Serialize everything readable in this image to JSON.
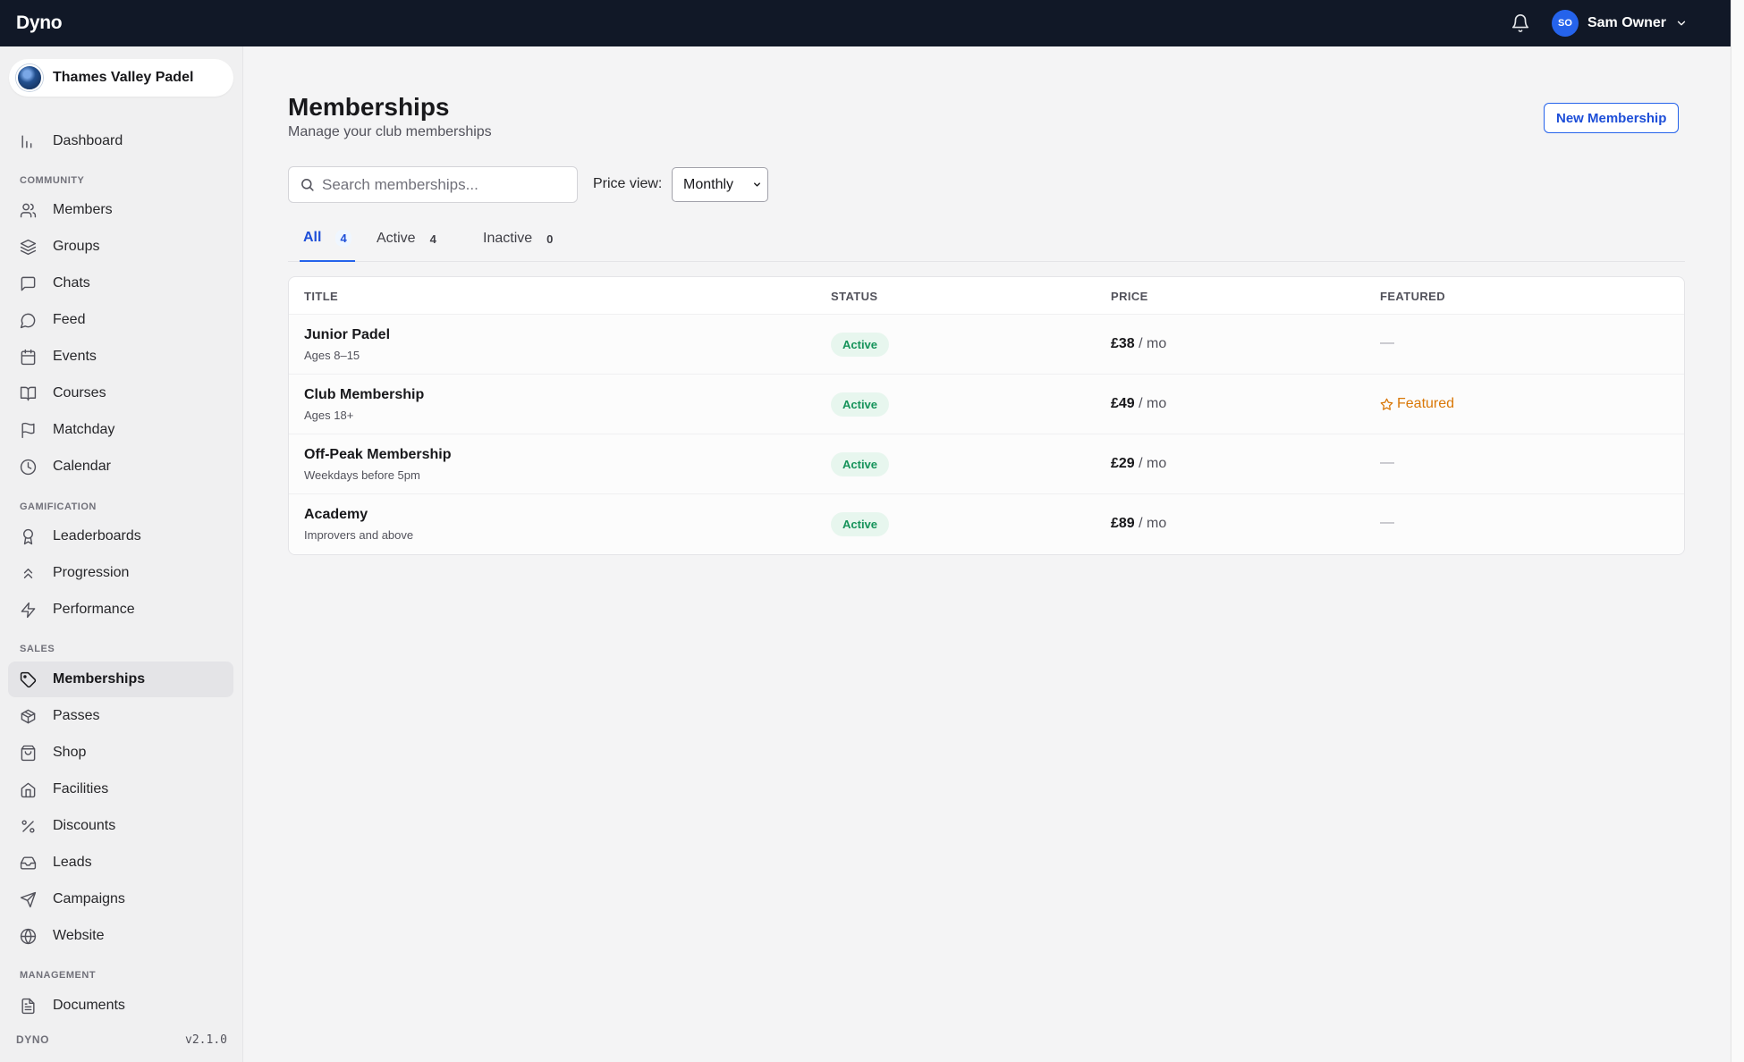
{
  "app": {
    "brand": "Dyno"
  },
  "topbar": {
    "user_initials": "SO",
    "user_name": "Sam Owner"
  },
  "sidebar": {
    "club_name": "Thames Valley Padel",
    "dashboard": "Dashboard",
    "sections": {
      "community": "COMMUNITY",
      "gamification": "GAMIFICATION",
      "sales": "SALES",
      "management": "MANAGEMENT"
    },
    "items": {
      "members": "Members",
      "groups": "Groups",
      "chats": "Chats",
      "feed": "Feed",
      "events": "Events",
      "courses": "Courses",
      "matchday": "Matchday",
      "calendar": "Calendar",
      "leaderboards": "Leaderboards",
      "progression": "Progression",
      "performance": "Performance",
      "memberships": "Memberships",
      "passes": "Passes",
      "shop": "Shop",
      "facilities": "Facilities",
      "discounts": "Discounts",
      "leads": "Leads",
      "campaigns": "Campaigns",
      "website": "Website",
      "documents": "Documents"
    },
    "footer_label": "DYNO",
    "version": "v2.1.0"
  },
  "page": {
    "title": "Memberships",
    "subtitle": "Manage your club memberships",
    "new_button": "New Membership",
    "search_placeholder": "Search memberships...",
    "price_view_label": "Price view:",
    "price_view_value": "Monthly"
  },
  "tabs": {
    "all": {
      "label": "All",
      "count": "4"
    },
    "active": {
      "label": "Active",
      "count": "4"
    },
    "inactive": {
      "label": "Inactive",
      "count": "0"
    }
  },
  "table": {
    "headers": {
      "title": "TITLE",
      "status": "STATUS",
      "price": "PRICE",
      "featured": "FEATURED"
    },
    "rows": [
      {
        "title": "Junior Padel",
        "subtitle": "Ages 8–15",
        "status": "Active",
        "price": "£38",
        "period": "/ mo",
        "featured": "—"
      },
      {
        "title": "Club Membership",
        "subtitle": "Ages 18+",
        "status": "Active",
        "price": "£49",
        "period": "/ mo",
        "featured": "Featured"
      },
      {
        "title": "Off-Peak Membership",
        "subtitle": "Weekdays before 5pm",
        "status": "Active",
        "price": "£29",
        "period": "/ mo",
        "featured": "—"
      },
      {
        "title": "Academy",
        "subtitle": "Improvers and above",
        "status": "Active",
        "price": "£89",
        "period": "/ mo",
        "featured": "—"
      }
    ]
  },
  "colors": {
    "topbar": "#111827",
    "accent": "#2563eb",
    "active_badge": "#15935a",
    "featured": "#d97706"
  }
}
